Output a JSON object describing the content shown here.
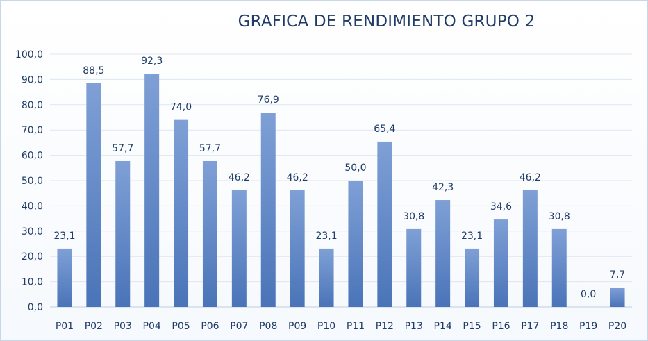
{
  "chart_data": {
    "type": "bar",
    "title": "GRAFICA DE RENDIMIENTO GRUPO 2",
    "xlabel": "",
    "ylabel": "",
    "ylim": [
      0,
      100
    ],
    "ytick_step": 10,
    "ytick_labels": [
      "0,0",
      "10,0",
      "20,0",
      "30,0",
      "40,0",
      "50,0",
      "60,0",
      "70,0",
      "80,0",
      "90,0",
      "100,0"
    ],
    "grid": true,
    "legend": "none",
    "categories": [
      "P01",
      "P02",
      "P03",
      "P04",
      "P05",
      "P06",
      "P07",
      "P08",
      "P09",
      "P10",
      "P11",
      "P12",
      "P13",
      "P14",
      "P15",
      "P16",
      "P17",
      "P18",
      "P19",
      "P20"
    ],
    "values": [
      23.1,
      88.5,
      57.7,
      92.3,
      74.0,
      57.7,
      46.2,
      76.9,
      46.2,
      23.1,
      50.0,
      65.4,
      30.8,
      42.3,
      23.1,
      34.6,
      46.2,
      30.8,
      0.0,
      7.7
    ],
    "value_labels": [
      "23,1",
      "88,5",
      "57,7",
      "92,3",
      "74,0",
      "57,7",
      "46,2",
      "76,9",
      "46,2",
      "23,1",
      "50,0",
      "65,4",
      "30,8",
      "42,3",
      "23,1",
      "34,6",
      "46,2",
      "30,8",
      "0,0",
      "7,7"
    ],
    "colors": {
      "bar_top": "#7fa0d6",
      "bar_bottom": "#4a74b8",
      "text": "#1f3b66",
      "grid": "#dde6f2",
      "axis": "#bfcde2"
    }
  }
}
